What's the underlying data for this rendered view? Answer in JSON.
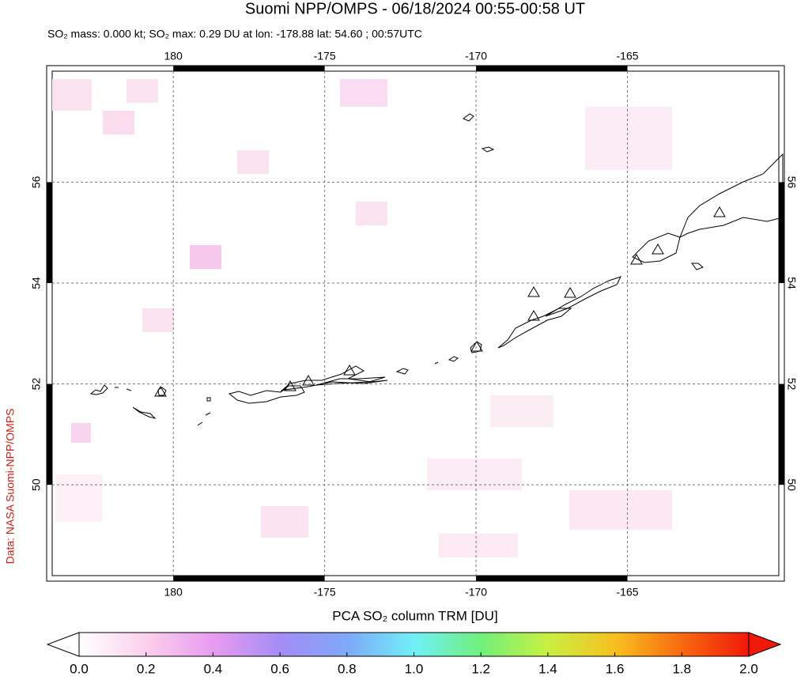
{
  "chart_data": {
    "type": "map",
    "title": "Suomi NPP/OMPS - 06/18/2024 00:55-00:58 UT",
    "subtitle": "SO₂ mass: 0.000 kt; SO₂ max: 0.29 DU at lon: -178.88 lat: 54.60 ; 00:57UTC",
    "credit": "Data: NASA Suomi-NPP/OMPS",
    "xlim": [
      -184,
      -160
    ],
    "xticks": [
      {
        "value": -180,
        "label": "180"
      },
      -175,
      -170,
      -165
    ],
    "ylim": [
      48.2,
      58.2
    ],
    "yticks": [
      56,
      54,
      52,
      50
    ],
    "grid": true,
    "colorbar": {
      "label": "PCA SO₂ column TRM [DU]",
      "clim": [
        0,
        2
      ],
      "ticks": [
        {
          "value": 0,
          "label": "0.0"
        },
        {
          "value": 0.2,
          "label": "0.2"
        },
        {
          "value": 0.4,
          "label": "0.4"
        },
        {
          "value": 0.6,
          "label": "0.6"
        },
        {
          "value": 0.8,
          "label": "0.8"
        },
        {
          "value": 1,
          "label": "1.0"
        },
        {
          "value": 1.2,
          "label": "1.2"
        },
        {
          "value": 1.4,
          "label": "1.4"
        },
        {
          "value": 1.6,
          "label": "1.6"
        },
        {
          "value": 1.8,
          "label": "1.8"
        },
        {
          "value": 2,
          "label": "2.0"
        }
      ],
      "colors": [
        "#ffffff",
        "#fbd0ec",
        "#e89cf0",
        "#a58cf5",
        "#7fa8f8",
        "#70f0f8",
        "#70f07c",
        "#c8f040",
        "#f8c020",
        "#f86a10",
        "#f01808"
      ]
    }
  }
}
